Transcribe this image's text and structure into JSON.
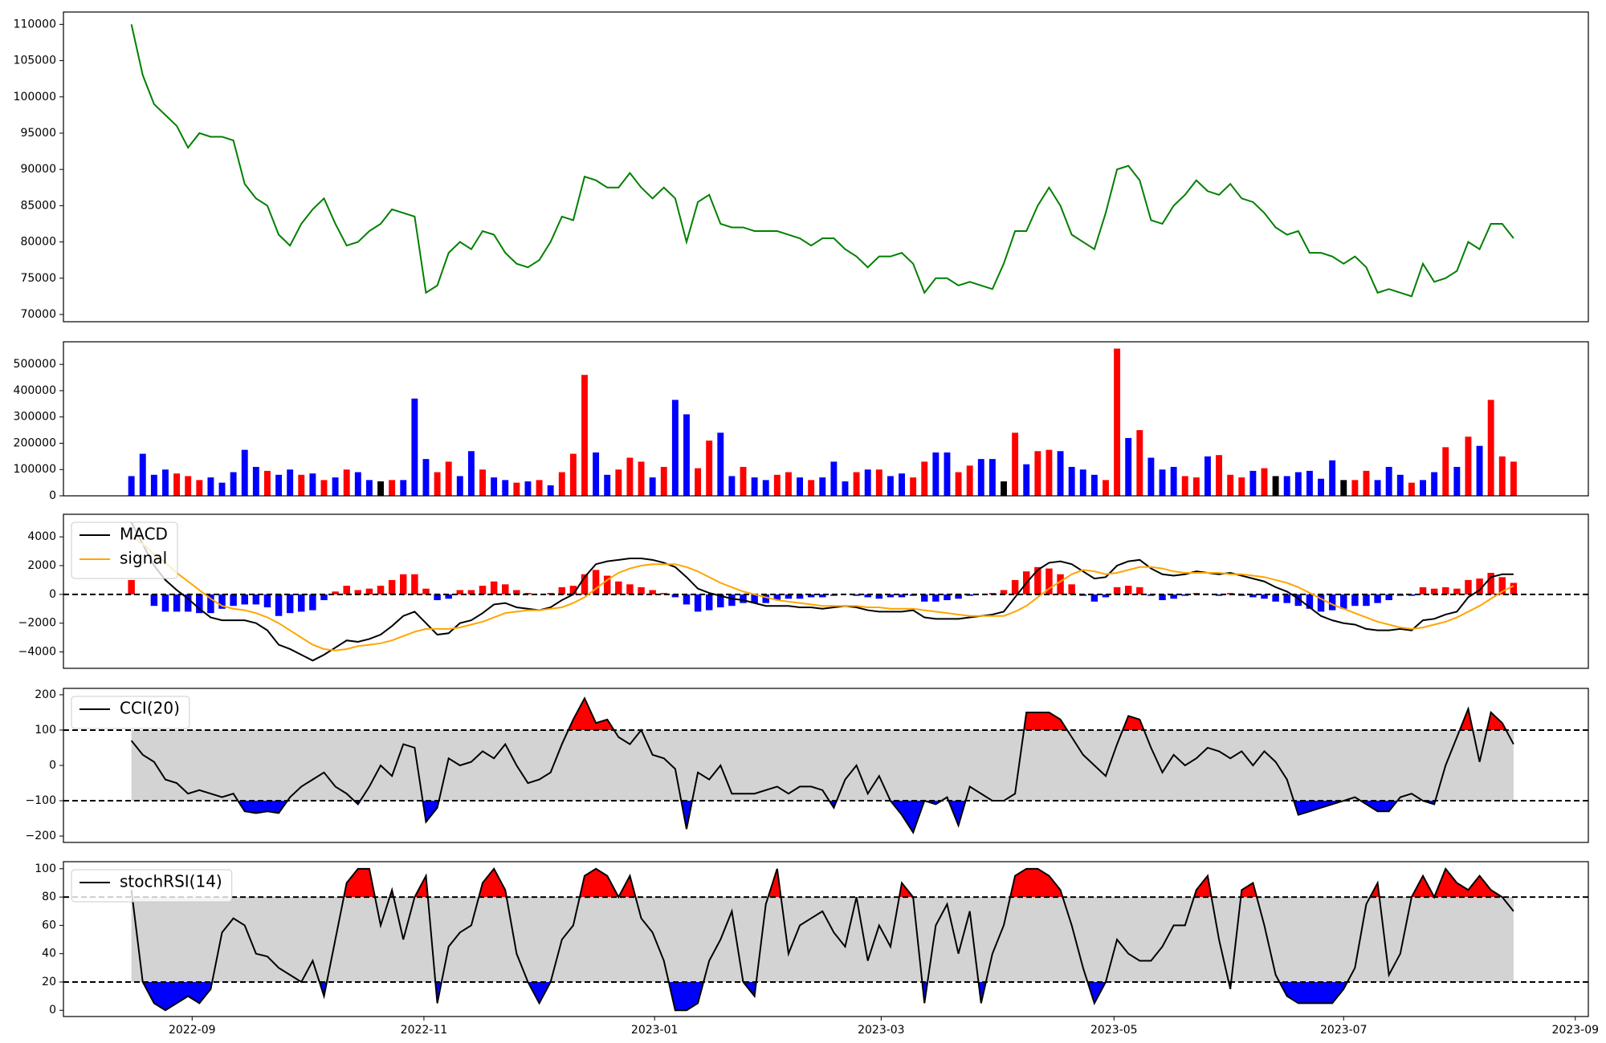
{
  "x_axis": {
    "xlim": [
      -6,
      128.6
    ],
    "xticks": [
      {
        "value": 5.36,
        "label": "2022-09"
      },
      {
        "value": 25.82,
        "label": "2022-11"
      },
      {
        "value": 46.18,
        "label": "2023-01"
      },
      {
        "value": 66.18,
        "label": "2023-03"
      },
      {
        "value": 86.73,
        "label": "2023-05"
      },
      {
        "value": 107,
        "label": "2023-07"
      },
      {
        "value": 127.45,
        "label": "2023-09"
      }
    ]
  },
  "chart_data": [
    {
      "type": "line",
      "series": [
        {
          "color": "#008000",
          "values": [
            110000,
            103000,
            99000,
            97500,
            96000,
            93000,
            95000,
            94500,
            94500,
            94000,
            88000,
            86000,
            85000,
            81000,
            79500,
            82500,
            84500,
            86000,
            82500,
            79500,
            80000,
            81500,
            82500,
            84500,
            84000,
            83500,
            73000,
            74000,
            78500,
            80000,
            79000,
            81500,
            81000,
            78500,
            77000,
            76500,
            77500,
            80000,
            83500,
            83000,
            89000,
            88500,
            87500,
            87500,
            89500,
            87500,
            86000,
            87500,
            86000,
            80000,
            85500,
            86500,
            82500,
            82000,
            82000,
            81500,
            81500,
            81500,
            81000,
            80500,
            79500,
            80500,
            80500,
            79000,
            78000,
            76500,
            78000,
            78000,
            78500,
            77000,
            73000,
            75000,
            75000,
            74000,
            74500,
            74000,
            73500,
            77000,
            81500,
            81500,
            85000,
            87500,
            85000,
            81000,
            80000,
            79000,
            84000,
            90000,
            90500,
            88500,
            83000,
            82500,
            85000,
            86500,
            88500,
            87000,
            86500,
            88000,
            86000,
            85500,
            84000,
            82000,
            81000,
            81500,
            78500,
            78500,
            78000,
            77000,
            78000,
            76500,
            73000,
            73500,
            73000,
            72500,
            77000,
            74500,
            75000,
            76000,
            80000,
            79000,
            82500,
            82500,
            80500
          ]
        }
      ],
      "ylim": [
        69000,
        111700
      ],
      "yticks": [
        70000,
        75000,
        80000,
        85000,
        90000,
        95000,
        100000,
        105000,
        110000
      ]
    },
    {
      "type": "bar",
      "values": [
        75000,
        160000,
        80000,
        100000,
        85000,
        75000,
        60000,
        70000,
        50000,
        90000,
        175000,
        110000,
        95000,
        80000,
        100000,
        80000,
        85000,
        60000,
        70000,
        100000,
        90000,
        60000,
        55000,
        60000,
        60000,
        370000,
        140000,
        90000,
        130000,
        75000,
        170000,
        100000,
        70000,
        60000,
        50000,
        55000,
        60000,
        40000,
        90000,
        160000,
        460000,
        165000,
        80000,
        100000,
        145000,
        130000,
        70000,
        110000,
        365000,
        310000,
        105000,
        210000,
        240000,
        75000,
        110000,
        70000,
        60000,
        80000,
        90000,
        70000,
        60000,
        70000,
        130000,
        55000,
        90000,
        100000,
        100000,
        75000,
        85000,
        70000,
        130000,
        165000,
        165000,
        90000,
        115000,
        140000,
        140000,
        55000,
        240000,
        120000,
        170000,
        175000,
        170000,
        110000,
        100000,
        80000,
        60000,
        560000,
        220000,
        250000,
        145000,
        100000,
        110000,
        75000,
        70000,
        150000,
        155000,
        80000,
        70000,
        95000,
        105000,
        75000,
        75000,
        90000,
        95000,
        65000,
        135000,
        60000,
        60000,
        95000,
        60000,
        110000,
        80000,
        50000,
        60000,
        90000,
        185000,
        110000,
        225000,
        190000,
        365000,
        150000,
        130000
      ],
      "colors": [
        "blue",
        "blue",
        "blue",
        "blue",
        "red",
        "red",
        "red",
        "blue",
        "blue",
        "blue",
        "blue",
        "blue",
        "red",
        "blue",
        "blue",
        "red",
        "blue",
        "red",
        "blue",
        "red",
        "blue",
        "blue",
        "black",
        "red",
        "blue",
        "blue",
        "blue",
        "red",
        "red",
        "blue",
        "blue",
        "red",
        "blue",
        "blue",
        "red",
        "blue",
        "red",
        "blue",
        "red",
        "red",
        "red",
        "blue",
        "blue",
        "red",
        "red",
        "red",
        "blue",
        "red",
        "blue",
        "blue",
        "red",
        "red",
        "blue",
        "blue",
        "red",
        "blue",
        "blue",
        "red",
        "red",
        "blue",
        "red",
        "blue",
        "blue",
        "blue",
        "red",
        "blue",
        "red",
        "blue",
        "blue",
        "red",
        "red",
        "blue",
        "blue",
        "red",
        "red",
        "blue",
        "blue",
        "black",
        "red",
        "blue",
        "red",
        "red",
        "blue",
        "blue",
        "blue",
        "blue",
        "red",
        "red",
        "blue",
        "red",
        "blue",
        "blue",
        "blue",
        "red",
        "red",
        "blue",
        "red",
        "red",
        "red",
        "blue",
        "red",
        "black",
        "blue",
        "blue",
        "blue",
        "blue",
        "blue",
        "black",
        "red",
        "red",
        "blue",
        "blue",
        "blue",
        "red",
        "blue",
        "blue",
        "red",
        "blue",
        "red",
        "blue",
        "red",
        "red",
        "red"
      ],
      "ylim": [
        0,
        586000
      ],
      "yticks": [
        0,
        100000,
        200000,
        300000,
        400000,
        500000
      ]
    },
    {
      "type": "line",
      "series": [
        {
          "name": "MACD",
          "color": "#000000",
          "values": [
            5000,
            3500,
            2000,
            1000,
            300,
            -300,
            -1000,
            -1600,
            -1800,
            -1800,
            -1800,
            -2000,
            -2500,
            -3500,
            -3800,
            -4200,
            -4600,
            -4200,
            -3700,
            -3200,
            -3300,
            -3100,
            -2800,
            -2200,
            -1500,
            -1200,
            -2000,
            -2800,
            -2700,
            -2000,
            -1800,
            -1300,
            -700,
            -600,
            -900,
            -1000,
            -1100,
            -900,
            -400,
            0,
            1200,
            2100,
            2300,
            2400,
            2500,
            2500,
            2400,
            2200,
            1900,
            1200,
            400,
            100,
            -100,
            -300,
            -400,
            -600,
            -800,
            -800,
            -800,
            -900,
            -900,
            -1000,
            -900,
            -800,
            -900,
            -1100,
            -1200,
            -1200,
            -1200,
            -1100,
            -1600,
            -1700,
            -1700,
            -1700,
            -1600,
            -1500,
            -1400,
            -1200,
            -200,
            800,
            1700,
            2200,
            2300,
            2100,
            1600,
            1100,
            1200,
            2000,
            2300,
            2400,
            1800,
            1400,
            1300,
            1400,
            1600,
            1500,
            1400,
            1500,
            1300,
            1100,
            900,
            500,
            200,
            -300,
            -900,
            -1500,
            -1800,
            -2000,
            -2100,
            -2400,
            -2500,
            -2500,
            -2400,
            -2500,
            -1800,
            -1700,
            -1400,
            -1200,
            -200,
            300,
            1200,
            1400,
            1400
          ]
        },
        {
          "name": "signal",
          "color": "#ffa500",
          "values": [
            4000,
            3500,
            2800,
            2200,
            1500,
            900,
            300,
            -300,
            -800,
            -1000,
            -1100,
            -1300,
            -1600,
            -2000,
            -2500,
            -3000,
            -3500,
            -3800,
            -3900,
            -3800,
            -3600,
            -3500,
            -3400,
            -3200,
            -2900,
            -2600,
            -2400,
            -2400,
            -2400,
            -2300,
            -2100,
            -1900,
            -1600,
            -1300,
            -1200,
            -1100,
            -1100,
            -1000,
            -900,
            -600,
            -200,
            400,
            1000,
            1500,
            1800,
            2000,
            2100,
            2100,
            2100,
            1900,
            1600,
            1200,
            800,
            500,
            200,
            0,
            -200,
            -400,
            -500,
            -600,
            -700,
            -800,
            -800,
            -800,
            -800,
            -900,
            -900,
            -1000,
            -1000,
            -1000,
            -1100,
            -1200,
            -1300,
            -1400,
            -1500,
            -1500,
            -1500,
            -1500,
            -1200,
            -800,
            -200,
            400,
            900,
            1400,
            1700,
            1600,
            1400,
            1500,
            1700,
            1900,
            1900,
            1800,
            1600,
            1500,
            1500,
            1500,
            1500,
            1400,
            1400,
            1300,
            1200,
            1000,
            800,
            500,
            100,
            -300,
            -700,
            -1000,
            -1300,
            -1600,
            -1900,
            -2100,
            -2300,
            -2400,
            -2300,
            -2100,
            -1900,
            -1600,
            -1200,
            -800,
            -300,
            200,
            600
          ]
        }
      ],
      "histogram": {
        "positive_color": "red",
        "negative_color": "blue",
        "values": [
          1000,
          0,
          -800,
          -1200,
          -1200,
          -1200,
          -1300,
          -1300,
          -1000,
          -800,
          -700,
          -700,
          -900,
          -1500,
          -1300,
          -1200,
          -1100,
          -400,
          200,
          600,
          300,
          400,
          600,
          1000,
          1400,
          1400,
          400,
          -400,
          -300,
          300,
          300,
          600,
          900,
          700,
          300,
          100,
          0,
          100,
          500,
          600,
          1400,
          1700,
          1300,
          900,
          700,
          500,
          300,
          100,
          -200,
          -700,
          -1200,
          -1100,
          -900,
          -800,
          -600,
          -600,
          -600,
          -400,
          -300,
          -300,
          -200,
          -200,
          -100,
          0,
          -100,
          -200,
          -300,
          -200,
          -200,
          -100,
          -500,
          -500,
          -400,
          -300,
          -100,
          0,
          100,
          300,
          1000,
          1600,
          1900,
          1800,
          1400,
          700,
          -100,
          -500,
          -200,
          500,
          600,
          500,
          -100,
          -400,
          -300,
          -100,
          100,
          0,
          -100,
          100,
          -100,
          -200,
          -300,
          -500,
          -600,
          -800,
          -1000,
          -1200,
          -1100,
          -1000,
          -800,
          -800,
          -600,
          -400,
          -100,
          -100,
          500,
          400,
          500,
          400,
          1000,
          1100,
          1500,
          1200,
          800
        ]
      },
      "levels": [
        0
      ],
      "legend": "upper left",
      "ylim": [
        -5140,
        5570
      ],
      "yticks": [
        {
          "value": -4000,
          "label": "−4000"
        },
        {
          "value": -2000,
          "label": "−2000"
        },
        0,
        2000,
        4000
      ]
    },
    {
      "type": "line",
      "series": [
        {
          "name": "CCI(20)",
          "color": "#000000",
          "values": [
            70,
            30,
            10,
            -40,
            -50,
            -80,
            -70,
            -80,
            -90,
            -80,
            -130,
            -135,
            -130,
            -135,
            -90,
            -60,
            -40,
            -20,
            -60,
            -80,
            -110,
            -60,
            0,
            -30,
            60,
            50,
            -160,
            -120,
            20,
            0,
            10,
            40,
            20,
            60,
            0,
            -50,
            -40,
            -20,
            60,
            130,
            190,
            120,
            130,
            80,
            60,
            100,
            30,
            20,
            -10,
            -180,
            -20,
            -40,
            0,
            -80,
            -80,
            -80,
            -70,
            -60,
            -80,
            -60,
            -60,
            -70,
            -120,
            -40,
            0,
            -80,
            -30,
            -100,
            -140,
            -190,
            -100,
            -110,
            -90,
            -170,
            -60,
            -80,
            -100,
            -100,
            -80,
            150,
            150,
            150,
            130,
            80,
            30,
            0,
            -30,
            60,
            140,
            130,
            50,
            -20,
            30,
            0,
            20,
            50,
            40,
            20,
            40,
            0,
            40,
            10,
            -40,
            -140,
            -130,
            -120,
            -110,
            -100,
            -90,
            -110,
            -130,
            -130,
            -90,
            -80,
            -100,
            -110,
            0,
            80,
            160,
            10,
            150,
            120,
            60
          ]
        }
      ],
      "levels": [
        100,
        -100
      ],
      "fill": {
        "upper_color": "red",
        "lower_color": "blue",
        "band_color": "#d3d3d3"
      },
      "legend": "upper left",
      "ylim": [
        -218,
        218
      ],
      "yticks": [
        {
          "value": -200,
          "label": "−200"
        },
        {
          "value": -100,
          "label": "−100"
        },
        0,
        100,
        200
      ]
    },
    {
      "type": "line",
      "series": [
        {
          "name": "stochRSI(14)",
          "color": "#000000",
          "values": [
            85,
            20,
            5,
            0,
            5,
            10,
            5,
            15,
            55,
            65,
            60,
            40,
            38,
            30,
            25,
            20,
            35,
            10,
            50,
            90,
            100,
            100,
            60,
            85,
            50,
            80,
            95,
            5,
            45,
            55,
            60,
            90,
            100,
            85,
            40,
            20,
            5,
            20,
            50,
            60,
            95,
            100,
            95,
            80,
            95,
            65,
            55,
            35,
            0,
            0,
            5,
            35,
            50,
            70,
            20,
            10,
            75,
            100,
            40,
            60,
            65,
            70,
            55,
            45,
            80,
            35,
            60,
            45,
            90,
            80,
            5,
            60,
            75,
            40,
            70,
            5,
            40,
            60,
            95,
            100,
            100,
            95,
            85,
            60,
            30,
            5,
            20,
            50,
            40,
            35,
            35,
            45,
            60,
            60,
            85,
            95,
            50,
            15,
            85,
            90,
            60,
            25,
            10,
            5,
            5,
            5,
            5,
            15,
            30,
            75,
            90,
            25,
            40,
            80,
            95,
            80,
            100,
            90,
            85,
            95,
            85,
            80,
            70
          ]
        }
      ],
      "levels": [
        80,
        20
      ],
      "fill": {
        "upper_color": "red",
        "lower_color": "blue",
        "band_color": "#d3d3d3"
      },
      "legend": "upper left",
      "ylim": [
        -4.4,
        105
      ],
      "yticks": [
        0,
        20,
        40,
        60,
        80,
        100
      ]
    }
  ]
}
